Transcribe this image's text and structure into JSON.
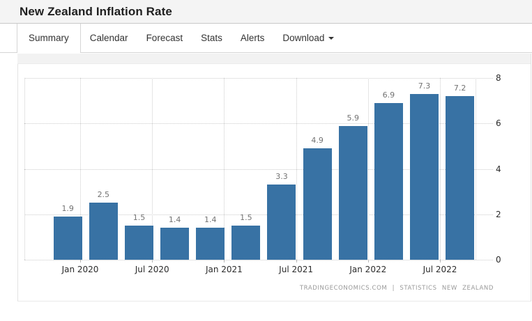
{
  "header": {
    "title": "New Zealand Inflation Rate"
  },
  "tabs": {
    "items": [
      {
        "label": "Summary",
        "active": true,
        "caret": false
      },
      {
        "label": "Calendar",
        "active": false,
        "caret": false
      },
      {
        "label": "Forecast",
        "active": false,
        "caret": false
      },
      {
        "label": "Stats",
        "active": false,
        "caret": false
      },
      {
        "label": "Alerts",
        "active": false,
        "caret": false
      },
      {
        "label": "Download",
        "active": false,
        "caret": true
      }
    ]
  },
  "chart_data": {
    "type": "bar",
    "title": "New Zealand Inflation Rate",
    "values": [
      1.9,
      2.5,
      1.5,
      1.4,
      1.4,
      1.5,
      3.3,
      4.9,
      5.9,
      6.9,
      7.3,
      7.2
    ],
    "value_labels": [
      "1.9",
      "2.5",
      "1.5",
      "1.4",
      "1.4",
      "1.5",
      "3.3",
      "4.9",
      "5.9",
      "6.9",
      "7.3",
      "7.2"
    ],
    "x_tick_labels": [
      "Jan 2020",
      "Jul 2020",
      "Jan 2021",
      "Jul 2021",
      "Jan 2022",
      "Jul 2022"
    ],
    "y_ticks": [
      0,
      2,
      4,
      6,
      8
    ],
    "ylim": [
      0,
      8
    ],
    "grid": "dotted, horizontal and vertical at ticks",
    "legend": "none",
    "bar_color": "#3872a4",
    "value_label_color": "#737373",
    "axis_label_color": "#2b2b2b",
    "gridline_color": "#cccccc"
  },
  "footer": {
    "source": "TRADINGECONOMICS.COM | STATISTICS NEW ZEALAND"
  }
}
